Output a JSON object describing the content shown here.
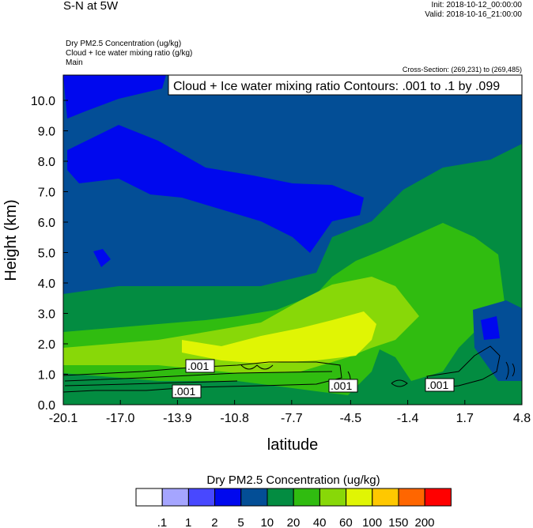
{
  "header": {
    "title": "S-N at 5W",
    "init": "Init: 2018-10-12_00:00:00",
    "valid": "Valid: 2018-10-16_21:00:00",
    "fields": [
      "Dry PM2.5 Concentration   (ug/kg)",
      "Cloud + Ice water mixing ratio   (g/kg)",
      "Main"
    ],
    "cross_section": "Cross-Section: (269,231) to (269,485)"
  },
  "chart_data": {
    "type": "heatmap",
    "title": "Cloud + Ice water mixing ratio Contours: .001 to .1 by .099",
    "xlabel": "latitude",
    "ylabel": "Height (km)",
    "xticks": [
      "-20.1",
      "-17.0",
      "-13.9",
      "-10.8",
      "-7.7",
      "-4.5",
      "-1.4",
      "1.7",
      "4.8"
    ],
    "yticks": [
      "0.0",
      "1.0",
      "2.0",
      "3.0",
      "4.0",
      "5.0",
      "6.0",
      "7.0",
      "8.0",
      "9.0",
      "10.0"
    ],
    "xlim": [
      -20.1,
      4.8
    ],
    "ylim": [
      0,
      10.8
    ],
    "contour_labels": [
      ".001",
      ".001",
      ".001",
      ".001"
    ],
    "colorbar": {
      "title": "Dry PM2.5 Concentration  (ug/kg)",
      "labels": [
        ".1",
        "1",
        "2",
        "5",
        "10",
        "20",
        "40",
        "60",
        "100",
        "150",
        "200"
      ],
      "colors": [
        "#ffffff",
        "#a5a5ff",
        "#4848ff",
        "#0008ee",
        "#034e96",
        "#038c41",
        "#30bc10",
        "#88d808",
        "#e0f504",
        "#ffc800",
        "#ff6600",
        "#ff0000"
      ]
    }
  }
}
